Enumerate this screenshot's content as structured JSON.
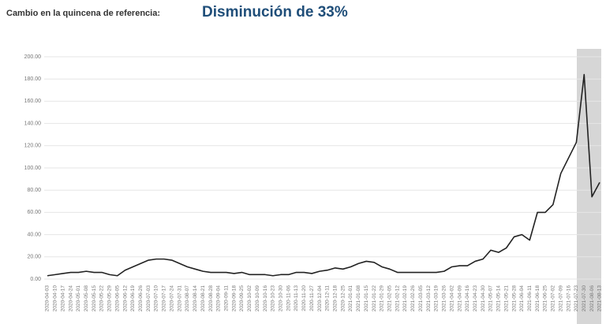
{
  "header": {
    "label": "Cambio en la quincena de referencia:",
    "headline": "Disminución de 33%"
  },
  "chart_data": {
    "type": "line",
    "categories": [
      "2020-04-03",
      "2020-04-10",
      "2020-04-17",
      "2020-04-24",
      "2020-05-01",
      "2020-05-08",
      "2020-05-15",
      "2020-05-22",
      "2020-05-29",
      "2020-06-05",
      "2020-06-12",
      "2020-06-19",
      "2020-06-26",
      "2020-07-03",
      "2020-07-10",
      "2020-07-17",
      "2020-07-24",
      "2020-07-31",
      "2020-08-07",
      "2020-08-14",
      "2020-08-21",
      "2020-08-28",
      "2020-09-04",
      "2020-09-11",
      "2020-09-18",
      "2020-09-25",
      "2020-10-02",
      "2020-10-09",
      "2020-10-16",
      "2020-10-23",
      "2020-10-30",
      "2020-11-06",
      "2020-11-13",
      "2020-11-20",
      "2020-11-27",
      "2020-12-04",
      "2020-12-11",
      "2020-12-18",
      "2020-12-25",
      "2021-01-01",
      "2021-01-08",
      "2021-01-15",
      "2021-01-22",
      "2021-01-29",
      "2021-02-05",
      "2021-02-12",
      "2021-02-19",
      "2021-02-26",
      "2021-03-05",
      "2021-03-12",
      "2021-03-19",
      "2021-03-26",
      "2021-04-02",
      "2021-04-09",
      "2021-04-16",
      "2021-04-23",
      "2021-04-30",
      "2021-05-07",
      "2021-05-14",
      "2021-05-21",
      "2021-05-28",
      "2021-06-04",
      "2021-06-11",
      "2021-06-18",
      "2021-06-25",
      "2021-07-02",
      "2021-07-09",
      "2021-07-16",
      "2021-07-23",
      "2021-07-30",
      "2021-08-06",
      "2021-08-13"
    ],
    "values": [
      3,
      4,
      5,
      6,
      6,
      7,
      6,
      6,
      4,
      3,
      8,
      11,
      14,
      17,
      18,
      18,
      17,
      14,
      11,
      9,
      7,
      6,
      6,
      6,
      5,
      6,
      4,
      4,
      4,
      3,
      4,
      4,
      6,
      6,
      5,
      7,
      8,
      10,
      9,
      11,
      14,
      16,
      15,
      11,
      9,
      6,
      6,
      6,
      6,
      6,
      6,
      7,
      11,
      12,
      12,
      16,
      18,
      26,
      24,
      28,
      38,
      40,
      35,
      60,
      60,
      67,
      95,
      109,
      123,
      184,
      74,
      87
    ],
    "color": "#222222",
    "ylim": [
      0,
      200
    ],
    "yticks": [
      {
        "value": 0,
        "label": "0.00"
      },
      {
        "value": 20,
        "label": "20.00"
      },
      {
        "value": 40,
        "label": "40.00"
      },
      {
        "value": 60,
        "label": "60.00"
      },
      {
        "value": 80,
        "label": "80.00"
      },
      {
        "value": 100,
        "label": "100.00"
      },
      {
        "value": 120,
        "label": "120.00"
      },
      {
        "value": 140,
        "label": "140.00"
      },
      {
        "value": 160,
        "label": "160.00"
      },
      {
        "value": 180,
        "label": "180.00"
      },
      {
        "value": 200,
        "label": "200.00"
      }
    ],
    "grid": true
  }
}
